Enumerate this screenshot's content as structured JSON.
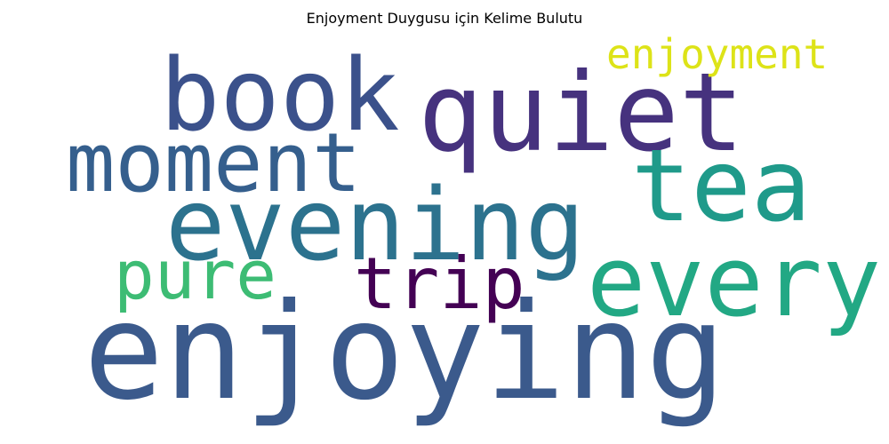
{
  "title": "Enjoyment Duygusu için Kelime Bulutu",
  "words": [
    {
      "text": "book",
      "color": "#3b518b"
    },
    {
      "text": "quiet",
      "color": "#46327e"
    },
    {
      "text": "enjoyment",
      "color": "#dde318"
    },
    {
      "text": "moment",
      "color": "#355f8d"
    },
    {
      "text": "tea",
      "color": "#1f9a8a"
    },
    {
      "text": "evening",
      "color": "#2c728e"
    },
    {
      "text": "pure",
      "color": "#3dbc74"
    },
    {
      "text": "trip",
      "color": "#440154"
    },
    {
      "text": "every",
      "color": "#22a884"
    },
    {
      "text": "enjoying",
      "color": "#3b5a8c"
    }
  ]
}
